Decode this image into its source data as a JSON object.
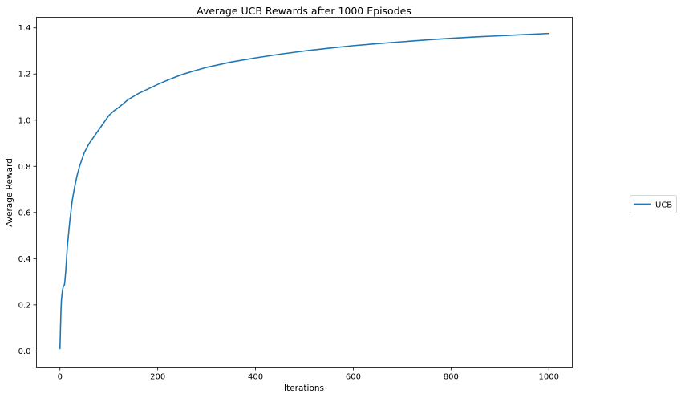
{
  "chart_data": {
    "type": "line",
    "title": "Average UCB Rewards after 1000 Episodes",
    "xlabel": "Iterations",
    "ylabel": "Average Reward",
    "xlim": [
      -48,
      1048
    ],
    "ylim": [
      -0.07,
      1.446
    ],
    "xticks": [
      0,
      200,
      400,
      600,
      800,
      1000
    ],
    "yticks": [
      0.0,
      0.2,
      0.4,
      0.6,
      0.8,
      1.0,
      1.2,
      1.4
    ],
    "xtick_labels": [
      "0",
      "200",
      "400",
      "600",
      "800",
      "1000"
    ],
    "ytick_labels": [
      "0.0",
      "0.2",
      "0.4",
      "0.6",
      "0.8",
      "1.0",
      "1.2",
      "1.4"
    ],
    "grid": false,
    "legend_position": "outside-right",
    "series": [
      {
        "name": "UCB",
        "color": "#1f77b4",
        "x": [
          0,
          1,
          2,
          3,
          5,
          7,
          9,
          10,
          12,
          15,
          20,
          25,
          30,
          35,
          40,
          45,
          50,
          60,
          70,
          80,
          90,
          100,
          110,
          120,
          140,
          160,
          180,
          200,
          225,
          250,
          275,
          300,
          350,
          400,
          450,
          500,
          550,
          600,
          650,
          700,
          750,
          800,
          850,
          900,
          950,
          1000
        ],
        "values": [
          0.01,
          0.09,
          0.17,
          0.22,
          0.26,
          0.28,
          0.285,
          0.3,
          0.35,
          0.45,
          0.56,
          0.65,
          0.71,
          0.76,
          0.8,
          0.83,
          0.86,
          0.9,
          0.93,
          0.96,
          0.99,
          1.02,
          1.04,
          1.055,
          1.09,
          1.115,
          1.135,
          1.155,
          1.178,
          1.198,
          1.214,
          1.229,
          1.252,
          1.27,
          1.286,
          1.3,
          1.312,
          1.323,
          1.332,
          1.34,
          1.348,
          1.355,
          1.361,
          1.366,
          1.371,
          1.376
        ]
      }
    ]
  }
}
